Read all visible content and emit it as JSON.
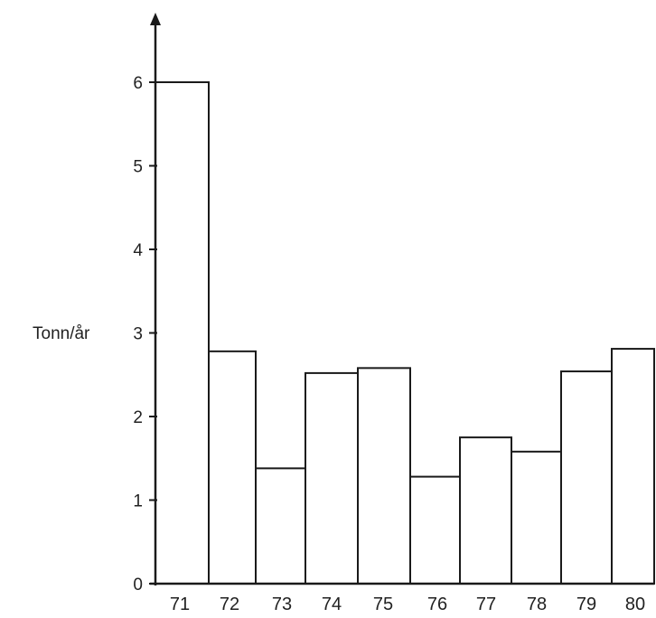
{
  "chart_data": {
    "type": "bar",
    "categories": [
      "71",
      "72",
      "73",
      "74",
      "75",
      "76",
      "77",
      "78",
      "79",
      "80"
    ],
    "values": [
      6.0,
      2.78,
      1.38,
      2.52,
      2.58,
      1.28,
      1.75,
      1.58,
      2.54,
      2.81
    ],
    "title": "",
    "xlabel": "",
    "ylabel": "Tonn/år",
    "ylim": [
      0,
      6.5
    ],
    "yticks": [
      "0",
      "1",
      "2",
      "3",
      "4",
      "5",
      "6"
    ],
    "grid": false,
    "bar_fill": "#ffffff",
    "bar_stroke": "#1a1a1a"
  }
}
